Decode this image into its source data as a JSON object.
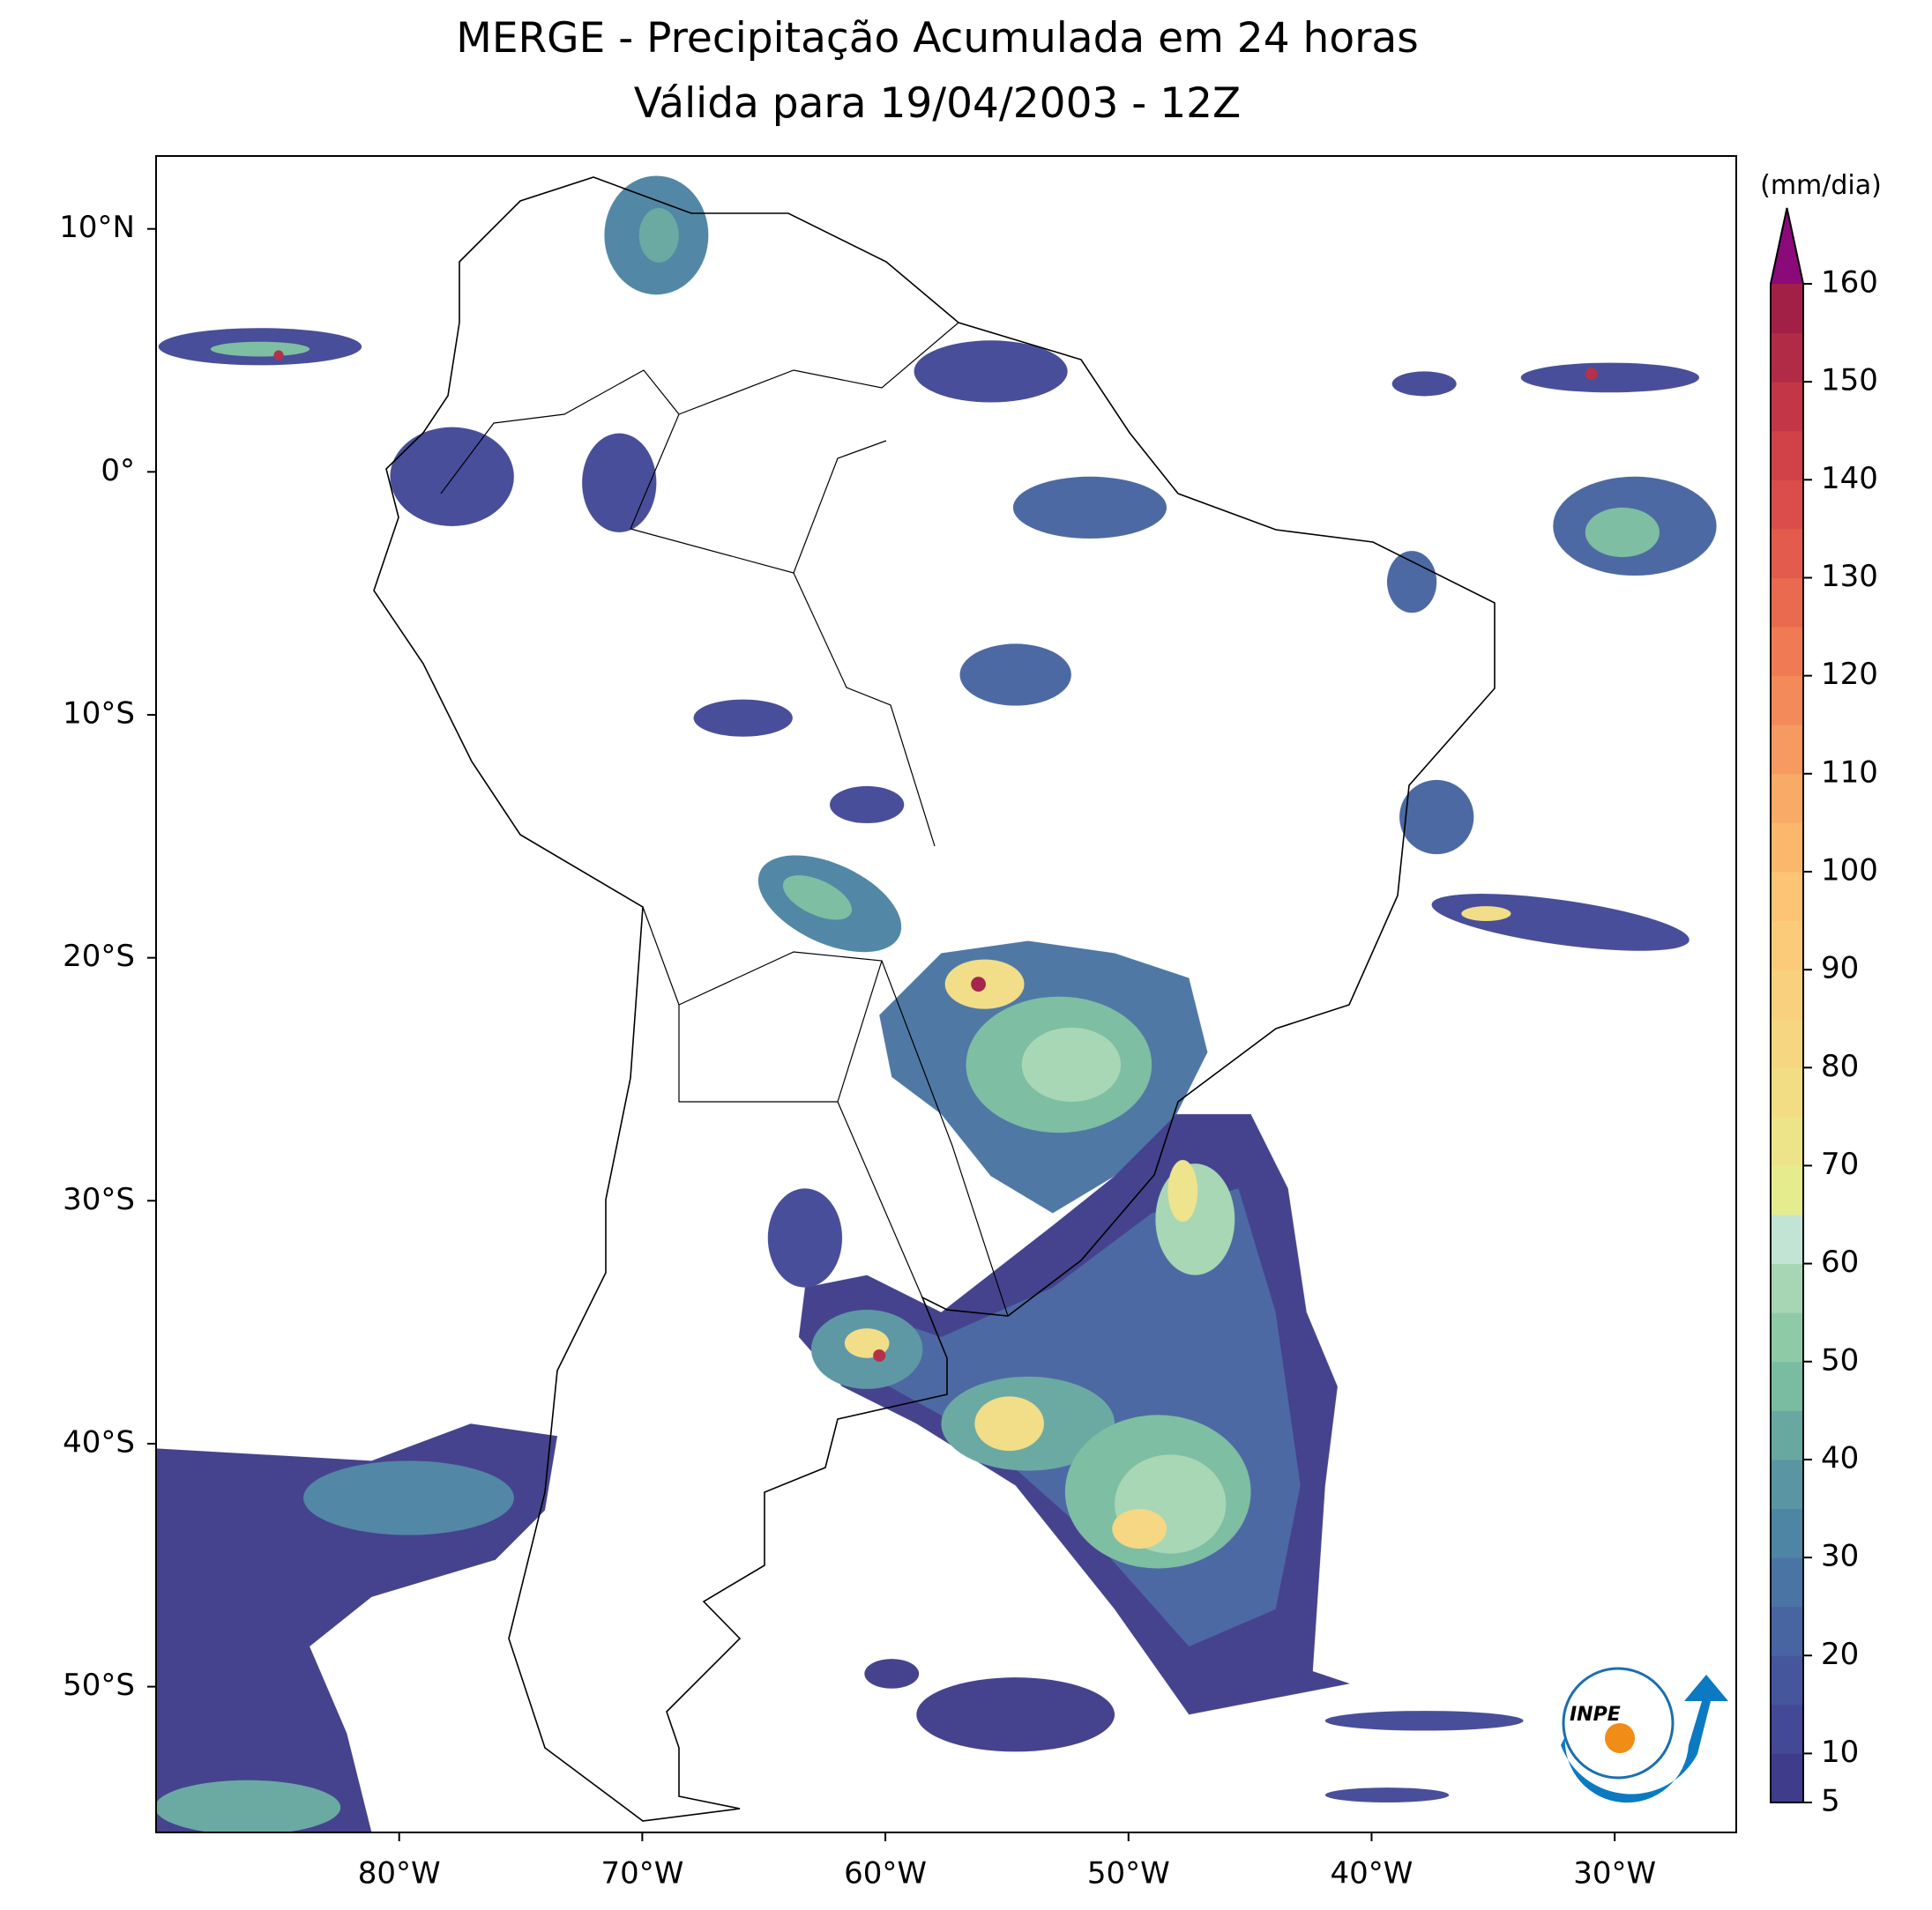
{
  "title": "MERGE - Precipitação Acumulada em 24 horas",
  "subtitle": "Válida para 19/04/2003 - 12Z",
  "map": {
    "xlim": [
      -90,
      -25
    ],
    "ylim": [
      -56,
      13
    ],
    "xticks": [
      {
        "value": -80,
        "label": "80°W"
      },
      {
        "value": -70,
        "label": "70°W"
      },
      {
        "value": -60,
        "label": "60°W"
      },
      {
        "value": -50,
        "label": "50°W"
      },
      {
        "value": -40,
        "label": "40°W"
      },
      {
        "value": -30,
        "label": "30°W"
      }
    ],
    "yticks": [
      {
        "value": 10,
        "label": "10°N"
      },
      {
        "value": 0,
        "label": "0°"
      },
      {
        "value": -10,
        "label": "10°S"
      },
      {
        "value": -20,
        "label": "20°S"
      },
      {
        "value": -30,
        "label": "30°S"
      },
      {
        "value": -40,
        "label": "40°S"
      },
      {
        "value": -50,
        "label": "50°S"
      }
    ]
  },
  "colorbar": {
    "label": "(mm/dia)",
    "ticks": [
      5,
      10,
      20,
      30,
      40,
      50,
      60,
      70,
      80,
      90,
      100,
      110,
      120,
      130,
      140,
      150,
      160
    ],
    "colors": [
      "#3f3d8b",
      "#434996",
      "#46569d",
      "#4865a1",
      "#4a74a3",
      "#4e84a4",
      "#5995a3",
      "#67a8a1",
      "#7abca1",
      "#8fcaa6",
      "#a6d6b4",
      "#c2e4d4",
      "#e4ec8e",
      "#ede48a",
      "#f2dd85",
      "#f6d681",
      "#f9d07d",
      "#fbcb7a",
      "#fcc474",
      "#fbb86d",
      "#f9aa67",
      "#f69a61",
      "#f38a5a",
      "#ef7a53",
      "#ea6a4f",
      "#e35b4c",
      "#da4d4a",
      "#d04148",
      "#c33647",
      "#b22b46",
      "#a21f45"
    ],
    "extend_color": "#8b0a7a"
  },
  "logo": {
    "text": "INPE"
  }
}
